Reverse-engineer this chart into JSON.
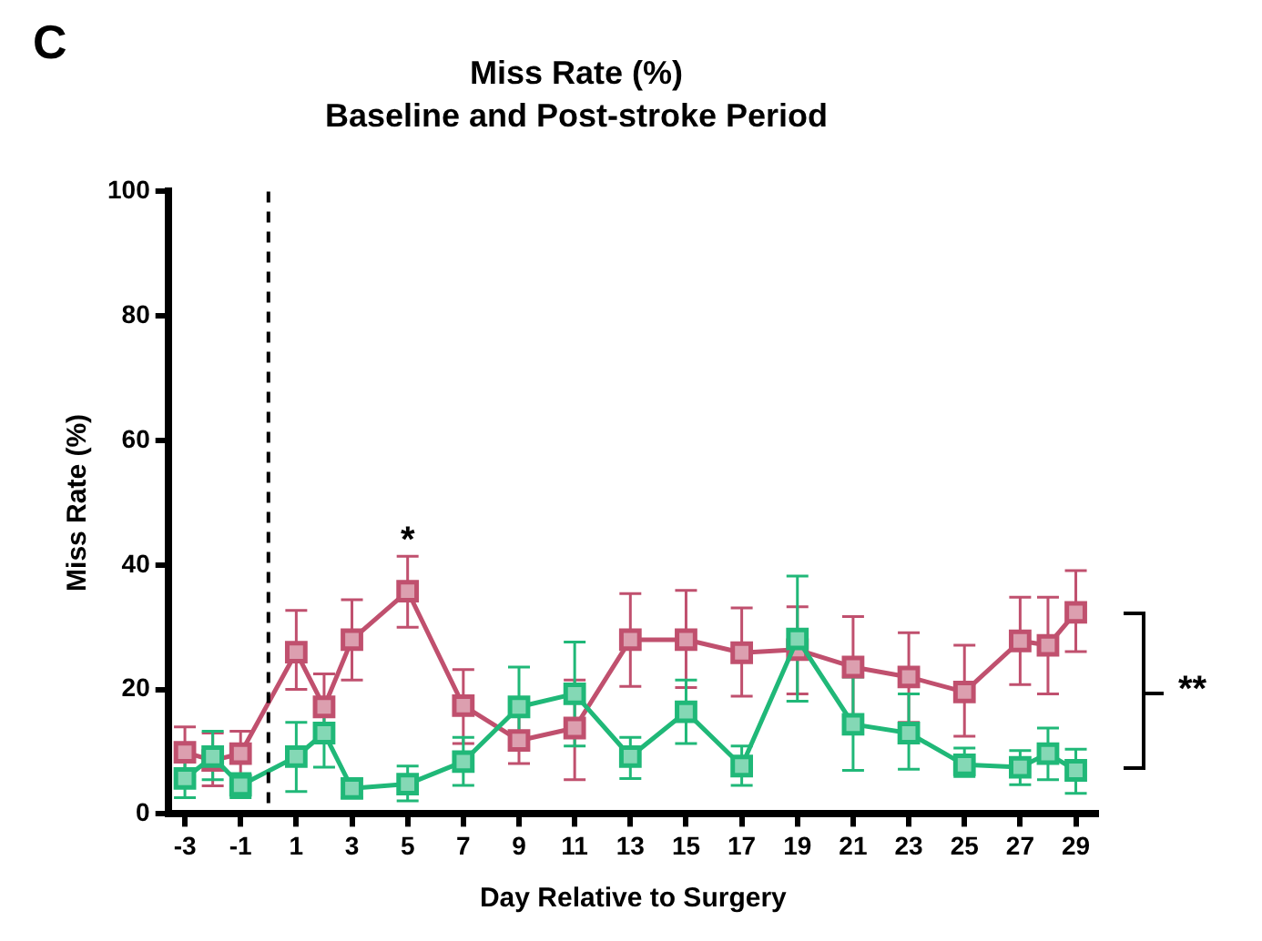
{
  "chart_data": {
    "type": "line",
    "title": "Miss Rate (%)",
    "subtitle": "Baseline and Post-stroke Period",
    "xlabel": "Day Relative to Surgery",
    "ylabel": "Miss Rate (%)",
    "x": [
      -3,
      -2,
      -1,
      1,
      2,
      3,
      5,
      7,
      9,
      11,
      13,
      15,
      17,
      19,
      21,
      23,
      25,
      27,
      28,
      29
    ],
    "series": [
      {
        "color": "#c0506e",
        "values": [
          9.9,
          8.6,
          9.7,
          26,
          17.2,
          28,
          35.8,
          17.4,
          11.8,
          13.8,
          28,
          28,
          25.9,
          26.4,
          23.6,
          22,
          19.6,
          27.8,
          27.1,
          32.4
        ],
        "errors": [
          [
            6,
            14
          ],
          [
            4.5,
            13
          ],
          [
            6,
            13.3
          ],
          [
            20,
            32.7
          ],
          [
            12.3,
            22.5
          ],
          [
            21.5,
            34.4
          ],
          [
            30,
            41.4
          ],
          [
            11.3,
            23.2
          ],
          [
            8.1,
            16.7
          ],
          [
            5.5,
            21.5
          ],
          [
            20.5,
            35.4
          ],
          [
            20.3,
            35.9
          ],
          [
            18.9,
            33.1
          ],
          [
            19.3,
            33.3
          ],
          [
            15.7,
            31.7
          ],
          [
            14.7,
            29.1
          ],
          [
            12.5,
            27.1
          ],
          [
            20.8,
            34.8
          ],
          [
            19.3,
            34.8
          ],
          [
            26.1,
            39.1
          ]
        ]
      },
      {
        "color": "#20b878",
        "values": [
          5.7,
          9.2,
          4.6,
          9.2,
          13,
          4.1,
          4.8,
          8.4,
          17.2,
          19.3,
          9.2,
          16.4,
          7.7,
          28.1,
          14.4,
          13,
          7.9,
          7.5,
          9.7,
          7
        ],
        "errors": [
          [
            2.6,
            8.9
          ],
          [
            5.5,
            13.3
          ],
          [
            2.6,
            6.5
          ],
          [
            3.6,
            14.7
          ],
          [
            7.5,
            18.6
          ],
          [
            2.6,
            5.6
          ],
          [
            2.1,
            7.7
          ],
          [
            4.6,
            12.3
          ],
          [
            10.9,
            23.6
          ],
          [
            10.9,
            27.6
          ],
          [
            5.7,
            12.3
          ],
          [
            11.3,
            21.5
          ],
          [
            4.6,
            10.9
          ],
          [
            18.1,
            38.2
          ],
          [
            7,
            22
          ],
          [
            7.2,
            19.3
          ],
          [
            6,
            10.6
          ],
          [
            4.7,
            10.2
          ],
          [
            5.5,
            13.8
          ],
          [
            3.3,
            10.4
          ]
        ]
      }
    ],
    "xlim": [
      -3.6,
      29.8
    ],
    "xticks": [
      -3,
      -1,
      1,
      3,
      5,
      7,
      9,
      11,
      13,
      15,
      17,
      19,
      21,
      23,
      25,
      27,
      29
    ],
    "ylim": [
      0,
      100
    ],
    "yticks": [
      0,
      20,
      40,
      60,
      80,
      100
    ],
    "ref_lines": [
      {
        "axis": "x",
        "value": 0,
        "line_style": "dashed",
        "color": "#000000"
      }
    ],
    "annotations": [
      "C",
      {
        "text": "*",
        "x": 5,
        "y": 41.4
      },
      "**"
    ],
    "marker": "square",
    "line_style": "solid",
    "grid": false,
    "legend": false
  }
}
